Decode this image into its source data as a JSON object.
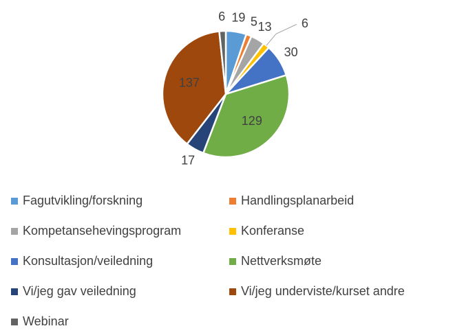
{
  "chart_data": {
    "type": "pie",
    "categories": [
      "Fagutvikling/forskning",
      "Handlingsplanarbeid",
      "Kompetansehevingsprogram",
      "Konferanse",
      "Konsultasjon/veiledning",
      "Nettverksmøte",
      "Vi/jeg gav veiledning",
      "Vi/jeg underviste/kurset andre",
      "Webinar"
    ],
    "values": [
      19,
      5,
      13,
      6,
      30,
      129,
      17,
      137,
      6
    ],
    "colors": [
      "#5B9BD5",
      "#ED7D31",
      "#A5A5A5",
      "#FFC000",
      "#4472C4",
      "#70AD47",
      "#264478",
      "#9E480E",
      "#636363"
    ],
    "legend": "bottom"
  }
}
